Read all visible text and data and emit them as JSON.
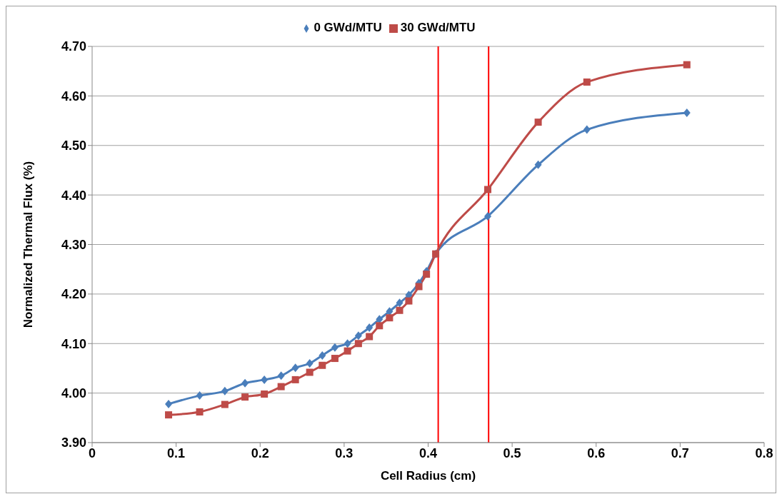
{
  "chart_data": {
    "type": "line",
    "xlabel": "Cell Radius (cm)",
    "ylabel": "Normalized Thermal Flux (%)",
    "x": [
      0.091,
      0.128,
      0.158,
      0.182,
      0.205,
      0.225,
      0.242,
      0.259,
      0.274,
      0.289,
      0.304,
      0.317,
      0.33,
      0.342,
      0.354,
      0.366,
      0.377,
      0.389,
      0.398,
      0.409,
      0.471,
      0.531,
      0.589,
      0.708
    ],
    "series": [
      {
        "name": "0 GWd/MTU",
        "color": "#4a7ebb",
        "marker": "diamond",
        "values": [
          3.978,
          3.995,
          4.004,
          4.02,
          4.027,
          4.035,
          4.051,
          4.06,
          4.076,
          4.092,
          4.1,
          4.116,
          4.132,
          4.149,
          4.165,
          4.182,
          4.198,
          4.222,
          4.246,
          4.281,
          4.357,
          4.461,
          4.532,
          4.566
        ]
      },
      {
        "name": "30 GWd/MTU",
        "color": "#be4b48",
        "marker": "square",
        "values": [
          3.956,
          3.962,
          3.977,
          3.992,
          3.998,
          4.013,
          4.027,
          4.042,
          4.056,
          4.07,
          4.085,
          4.1,
          4.114,
          4.136,
          4.152,
          4.167,
          4.186,
          4.215,
          4.24,
          4.281,
          4.411,
          4.547,
          4.628,
          4.663
        ]
      }
    ],
    "xlim": [
      0,
      0.8
    ],
    "xticks": [
      0,
      0.1,
      0.2,
      0.3,
      0.4,
      0.5,
      0.6,
      0.7,
      0.8
    ],
    "ylim": [
      3.9,
      4.7
    ],
    "yticks": [
      {
        "value": 3.9,
        "label": "3.90"
      },
      {
        "value": 4.0,
        "label": "4.00"
      },
      {
        "value": 4.1,
        "label": "4.10"
      },
      {
        "value": 4.2,
        "label": "4.20"
      },
      {
        "value": 4.3,
        "label": "4.30"
      },
      {
        "value": 4.4,
        "label": "4.40"
      },
      {
        "value": 4.5,
        "label": "4.50"
      },
      {
        "value": 4.6,
        "label": "4.60"
      },
      {
        "value": 4.7,
        "label": "4.70"
      }
    ],
    "ref_lines": [
      {
        "axis": "x",
        "value": 0.412,
        "color": "#ff0000"
      },
      {
        "axis": "x",
        "value": 0.472,
        "color": "#ff0000"
      }
    ],
    "grid": "y",
    "legend": "top",
    "line_style": "solid"
  }
}
